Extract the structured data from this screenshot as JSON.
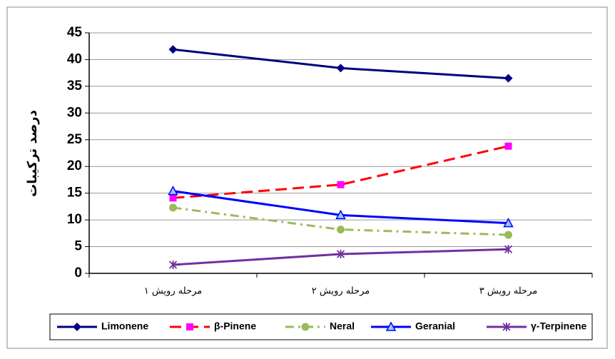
{
  "chart_data": {
    "type": "line",
    "y_label": "درصد ترکیبات",
    "categories": [
      "مرحله رویش ۱",
      "مرحله رویش ۲",
      "مرحله رویش ۳"
    ],
    "series": [
      {
        "name": "Limonene",
        "color": "#000080",
        "marker_color": "#000080",
        "marker": "diamond",
        "dash": "solid",
        "values": [
          41.9,
          38.4,
          36.5
        ]
      },
      {
        "name": "β-Pinene",
        "color": "#ff0000",
        "marker_color": "#ff00ff",
        "marker": "square",
        "dash": "dashed",
        "values": [
          14.1,
          16.6,
          23.8
        ]
      },
      {
        "name": "Neral",
        "color": "#9bbb59",
        "marker_color": "#9bbb59",
        "marker": "circle",
        "dash": "dashdot",
        "values": [
          12.3,
          8.2,
          7.2
        ]
      },
      {
        "name": "Geranial",
        "color": "#0000ff",
        "marker_color": "#0000ff",
        "marker": "triangle",
        "dash": "solid",
        "values": [
          15.4,
          10.9,
          9.4
        ]
      },
      {
        "name": "γ-Terpinene",
        "color": "#7030a0",
        "marker_color": "#7030a0",
        "marker": "asterisk",
        "dash": "solid",
        "values": [
          1.6,
          3.6,
          4.5
        ]
      }
    ],
    "ylim": [
      0,
      45
    ],
    "yticks": [
      0,
      5,
      10,
      15,
      20,
      25,
      30,
      35,
      40,
      45
    ],
    "grid": true,
    "legend": "bottom"
  }
}
